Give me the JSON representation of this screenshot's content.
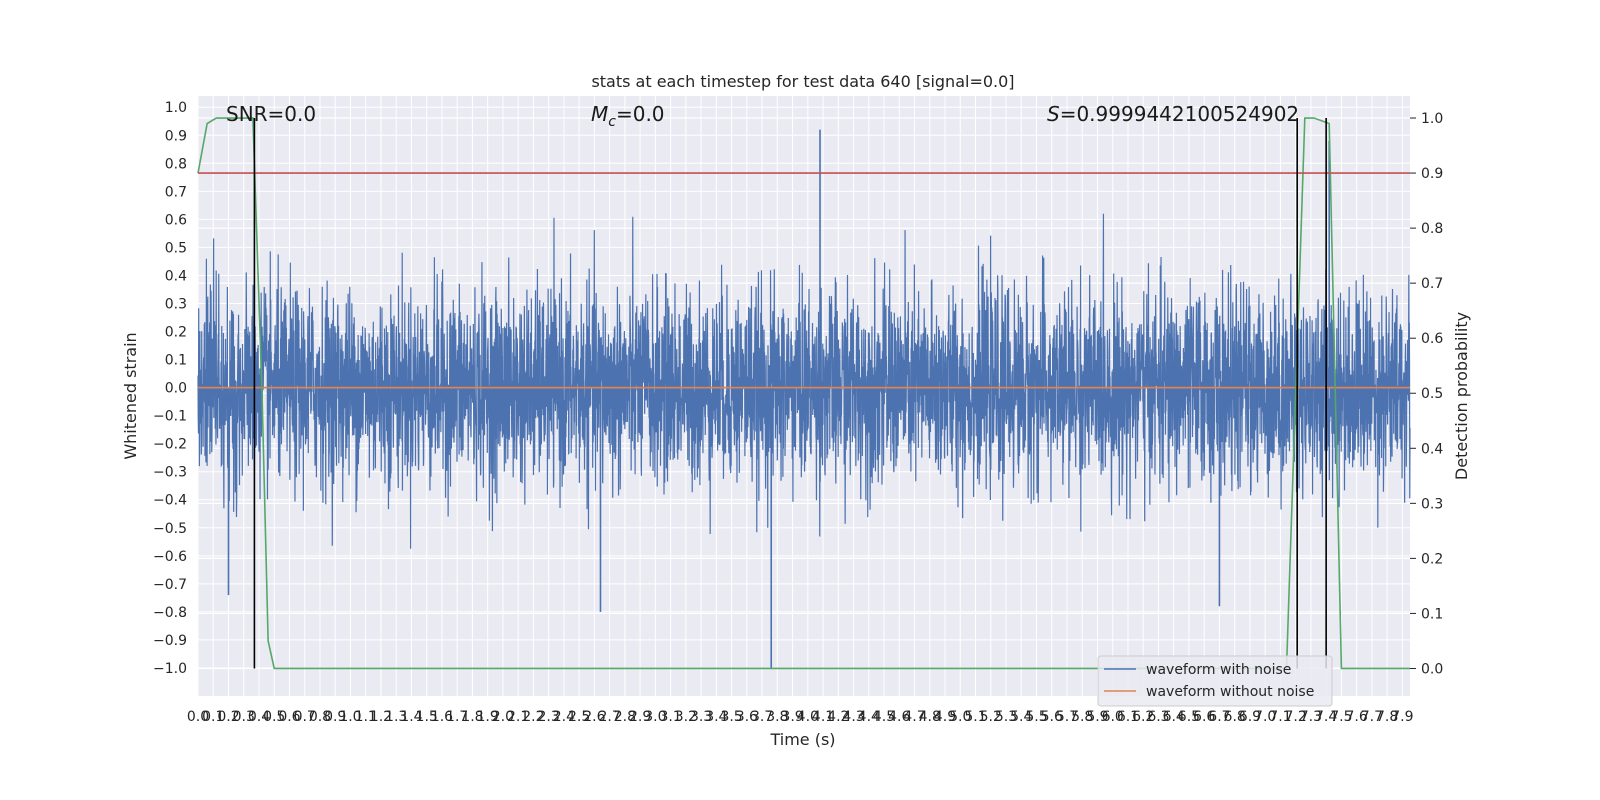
{
  "chart_data": {
    "type": "line",
    "title": "stats at each timestep for test data 640 [signal=0.0]",
    "xlabel": "Time (s)",
    "ylabel": "Whitened strain",
    "ylabel_right": "Detection probability",
    "xlim": [
      0.0,
      7.95
    ],
    "ylim": [
      -1.1,
      1.04
    ],
    "ylim_right": [
      -0.05,
      1.04
    ],
    "x_ticks": [
      "0.0",
      "0.1",
      "0.2",
      "0.3",
      "0.4",
      "0.5",
      "0.6",
      "0.7",
      "0.8",
      "0.9",
      "1.0",
      "1.1",
      "1.2",
      "1.3",
      "1.4",
      "1.5",
      "1.6",
      "1.7",
      "1.8",
      "1.9",
      "2.0",
      "2.1",
      "2.2",
      "2.3",
      "2.4",
      "2.5",
      "2.6",
      "2.7",
      "2.8",
      "2.9",
      "3.0",
      "3.1",
      "3.2",
      "3.3",
      "3.4",
      "3.5",
      "3.6",
      "3.7",
      "3.8",
      "3.9",
      "4.0",
      "4.1",
      "4.2",
      "4.3",
      "4.4",
      "4.5",
      "4.6",
      "4.7",
      "4.8",
      "4.9",
      "5.0",
      "5.1",
      "5.2",
      "5.3",
      "5.4",
      "5.5",
      "5.6",
      "5.7",
      "5.8",
      "5.9",
      "6.0",
      "6.1",
      "6.2",
      "6.3",
      "6.4",
      "6.5",
      "6.6",
      "6.7",
      "6.8",
      "6.9",
      "7.0",
      "7.1",
      "7.2",
      "7.3",
      "7.4",
      "7.5",
      "7.6",
      "7.7",
      "7.8",
      "7.9"
    ],
    "y_ticks": [
      "1.0",
      "0.9",
      "0.8",
      "0.7",
      "0.6",
      "0.5",
      "0.4",
      "0.3",
      "0.2",
      "0.1",
      "0.0",
      "−0.1",
      "−0.2",
      "−0.3",
      "−0.4",
      "−0.5",
      "−0.6",
      "−0.7",
      "−0.8",
      "−0.9",
      "−1.0"
    ],
    "y_ticks_right": [
      "1.0",
      "0.9",
      "0.8",
      "0.7",
      "0.6",
      "0.5",
      "0.4",
      "0.3",
      "0.2",
      "0.1",
      "0.0"
    ],
    "grid": true,
    "legend_position": "lower-right",
    "annotations": {
      "snr": "SNR=0.0",
      "mc_symbol": "M",
      "mc_sub": "c",
      "mc_value": "=0.0",
      "s_symbol": "S",
      "s_value": "=0.9999442100524902"
    },
    "series": [
      {
        "name": "waveform with noise",
        "color": "#4c72b0",
        "description_values": "dense noise trace, envelope roughly between -0.8 and 0.75",
        "x_range": [
          0.0,
          7.95
        ],
        "typical_amplitude": 0.35,
        "extremes": [
          {
            "x": 4.08,
            "y": 0.92
          },
          {
            "x": 7.42,
            "y": 0.88
          },
          {
            "x": 3.76,
            "y": -1.0
          },
          {
            "x": 2.64,
            "y": -0.8
          },
          {
            "x": 0.2,
            "y": -0.74
          },
          {
            "x": 6.7,
            "y": -0.78
          }
        ]
      },
      {
        "name": "waveform without noise",
        "color": "#dd8452",
        "x": [
          0.0,
          7.95
        ],
        "y": [
          0.0,
          0.0
        ]
      },
      {
        "color": "#55a868",
        "axis": "right",
        "x": [
          0.0,
          0.06,
          0.12,
          0.36,
          0.42,
          0.46,
          0.5,
          7.14,
          7.2,
          7.26,
          7.32,
          7.42,
          7.46,
          7.5,
          7.95
        ],
        "y": [
          0.9,
          0.99,
          1.0,
          1.0,
          0.5,
          0.05,
          0.0,
          0.0,
          0.5,
          1.0,
          1.0,
          0.99,
          0.5,
          0.0,
          0.0
        ]
      },
      {
        "color": "#c44e52",
        "axis": "right",
        "x": [
          0.0,
          7.95
        ],
        "y": [
          0.9,
          0.9
        ]
      }
    ],
    "vertical_markers": [
      {
        "x": 0.37,
        "color": "#000000",
        "ymin_right": 0.0,
        "ymax_right": 1.0
      },
      {
        "x": 7.21,
        "color": "#000000",
        "ymin_right": 0.0,
        "ymax_right": 1.0
      },
      {
        "x": 7.4,
        "color": "#000000",
        "ymin_right": 0.0,
        "ymax_right": 1.0
      }
    ]
  }
}
